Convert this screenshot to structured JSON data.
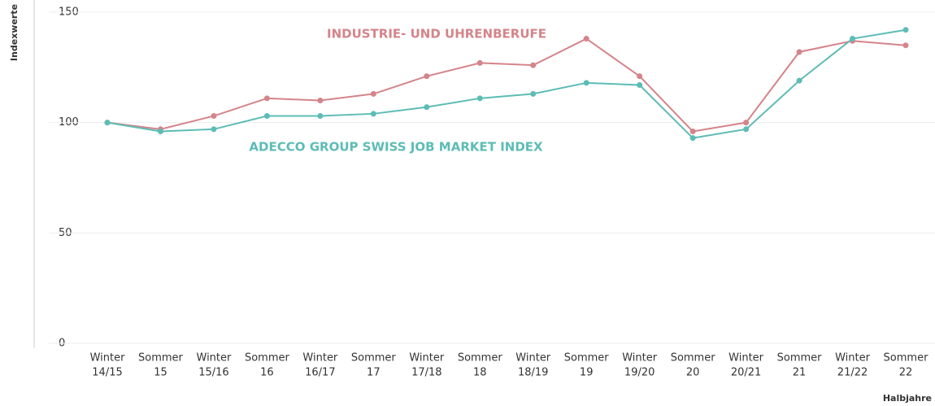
{
  "chart_data": {
    "type": "line",
    "y_label": "Indexwerte",
    "x_label": "Halbjahre",
    "categories": [
      [
        "Winter",
        "14/15"
      ],
      [
        "Sommer",
        "15"
      ],
      [
        "Winter",
        "15/16"
      ],
      [
        "Sommer",
        "16"
      ],
      [
        "Winter",
        "16/17"
      ],
      [
        "Sommer",
        "17"
      ],
      [
        "Winter",
        "17/18"
      ],
      [
        "Sommer",
        "18"
      ],
      [
        "Winter",
        "18/19"
      ],
      [
        "Sommer",
        "19"
      ],
      [
        "Winter",
        "19/20"
      ],
      [
        "Sommer",
        "20"
      ],
      [
        "Winter",
        "20/21"
      ],
      [
        "Sommer",
        "21"
      ],
      [
        "Winter",
        "21/22"
      ],
      [
        "Sommer",
        "22"
      ]
    ],
    "series": [
      {
        "name": "INDUSTRIE- UND UHRENBERUFE",
        "color": "#d4848a",
        "values": [
          100,
          97,
          103,
          111,
          110,
          113,
          121,
          127,
          126,
          138,
          121,
          96,
          100,
          132,
          137,
          135
        ]
      },
      {
        "name": "ADECCO GROUP SWISS JOB MARKET INDEX",
        "color": "#5dbcb5",
        "values": [
          100,
          96,
          97,
          103,
          103,
          104,
          107,
          111,
          113,
          118,
          117,
          93,
          97,
          119,
          138,
          142
        ]
      }
    ],
    "ylim": [
      0,
      150
    ],
    "yticks": [
      0,
      50,
      100,
      150
    ],
    "grid": true
  }
}
